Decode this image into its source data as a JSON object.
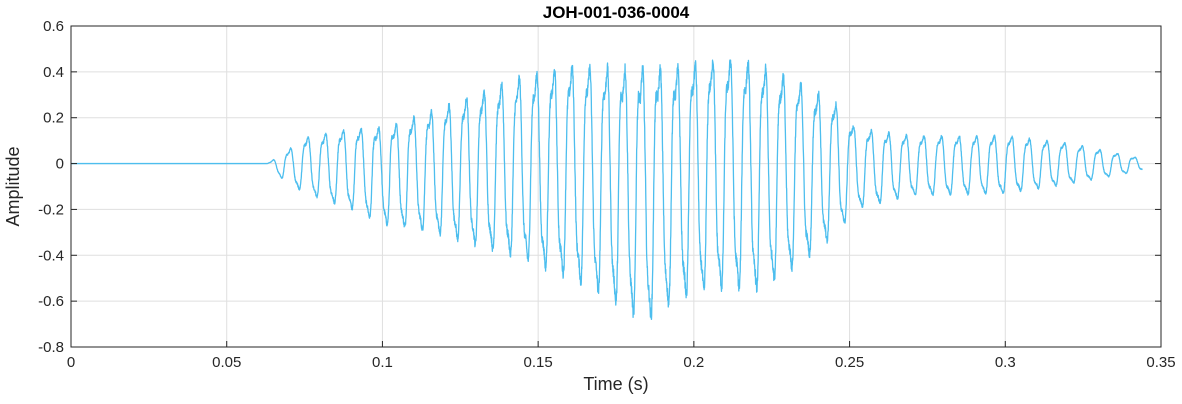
{
  "chart_data": {
    "type": "line",
    "title": "JOH-001-036-0004",
    "xlabel": "Time (s)",
    "ylabel": "Amplitude",
    "xlim": [
      0,
      0.35
    ],
    "ylim": [
      -0.8,
      0.6
    ],
    "xticks": [
      0,
      0.05,
      0.1,
      0.15,
      0.2,
      0.25,
      0.3,
      0.35
    ],
    "xtick_labels": [
      "0",
      "0.05",
      "0.1",
      "0.15",
      "0.2",
      "0.25",
      "0.3",
      "0.35"
    ],
    "yticks": [
      -0.8,
      -0.6,
      -0.4,
      -0.2,
      0,
      0.2,
      0.4,
      0.6
    ],
    "ytick_labels": [
      "-0.8",
      "-0.6",
      "-0.4",
      "-0.2",
      "0",
      "0.2",
      "0.4",
      "0.6"
    ],
    "grid": true,
    "line_color": "#4dbeee",
    "signal": {
      "duration": 0.344,
      "onset": 0.063,
      "period": 0.00565,
      "envelope": [
        {
          "t": 0.063,
          "max": 0.0,
          "min": 0.0
        },
        {
          "t": 0.068,
          "max": 0.04,
          "min": -0.07
        },
        {
          "t": 0.075,
          "max": 0.11,
          "min": -0.13
        },
        {
          "t": 0.09,
          "max": 0.15,
          "min": -0.2
        },
        {
          "t": 0.1,
          "max": 0.15,
          "min": -0.27
        },
        {
          "t": 0.115,
          "max": 0.22,
          "min": -0.3
        },
        {
          "t": 0.13,
          "max": 0.3,
          "min": -0.36
        },
        {
          "t": 0.145,
          "max": 0.38,
          "min": -0.42
        },
        {
          "t": 0.16,
          "max": 0.42,
          "min": -0.5
        },
        {
          "t": 0.175,
          "max": 0.41,
          "min": -0.62
        },
        {
          "t": 0.184,
          "max": 0.4,
          "min": -0.71
        },
        {
          "t": 0.195,
          "max": 0.41,
          "min": -0.6
        },
        {
          "t": 0.208,
          "max": 0.46,
          "min": -0.55
        },
        {
          "t": 0.22,
          "max": 0.43,
          "min": -0.56
        },
        {
          "t": 0.232,
          "max": 0.36,
          "min": -0.46
        },
        {
          "t": 0.245,
          "max": 0.27,
          "min": -0.32
        },
        {
          "t": 0.252,
          "max": 0.15,
          "min": -0.2
        },
        {
          "t": 0.27,
          "max": 0.12,
          "min": -0.14
        },
        {
          "t": 0.3,
          "max": 0.12,
          "min": -0.13
        },
        {
          "t": 0.32,
          "max": 0.09,
          "min": -0.09
        },
        {
          "t": 0.344,
          "max": 0.02,
          "min": -0.03
        }
      ]
    }
  }
}
